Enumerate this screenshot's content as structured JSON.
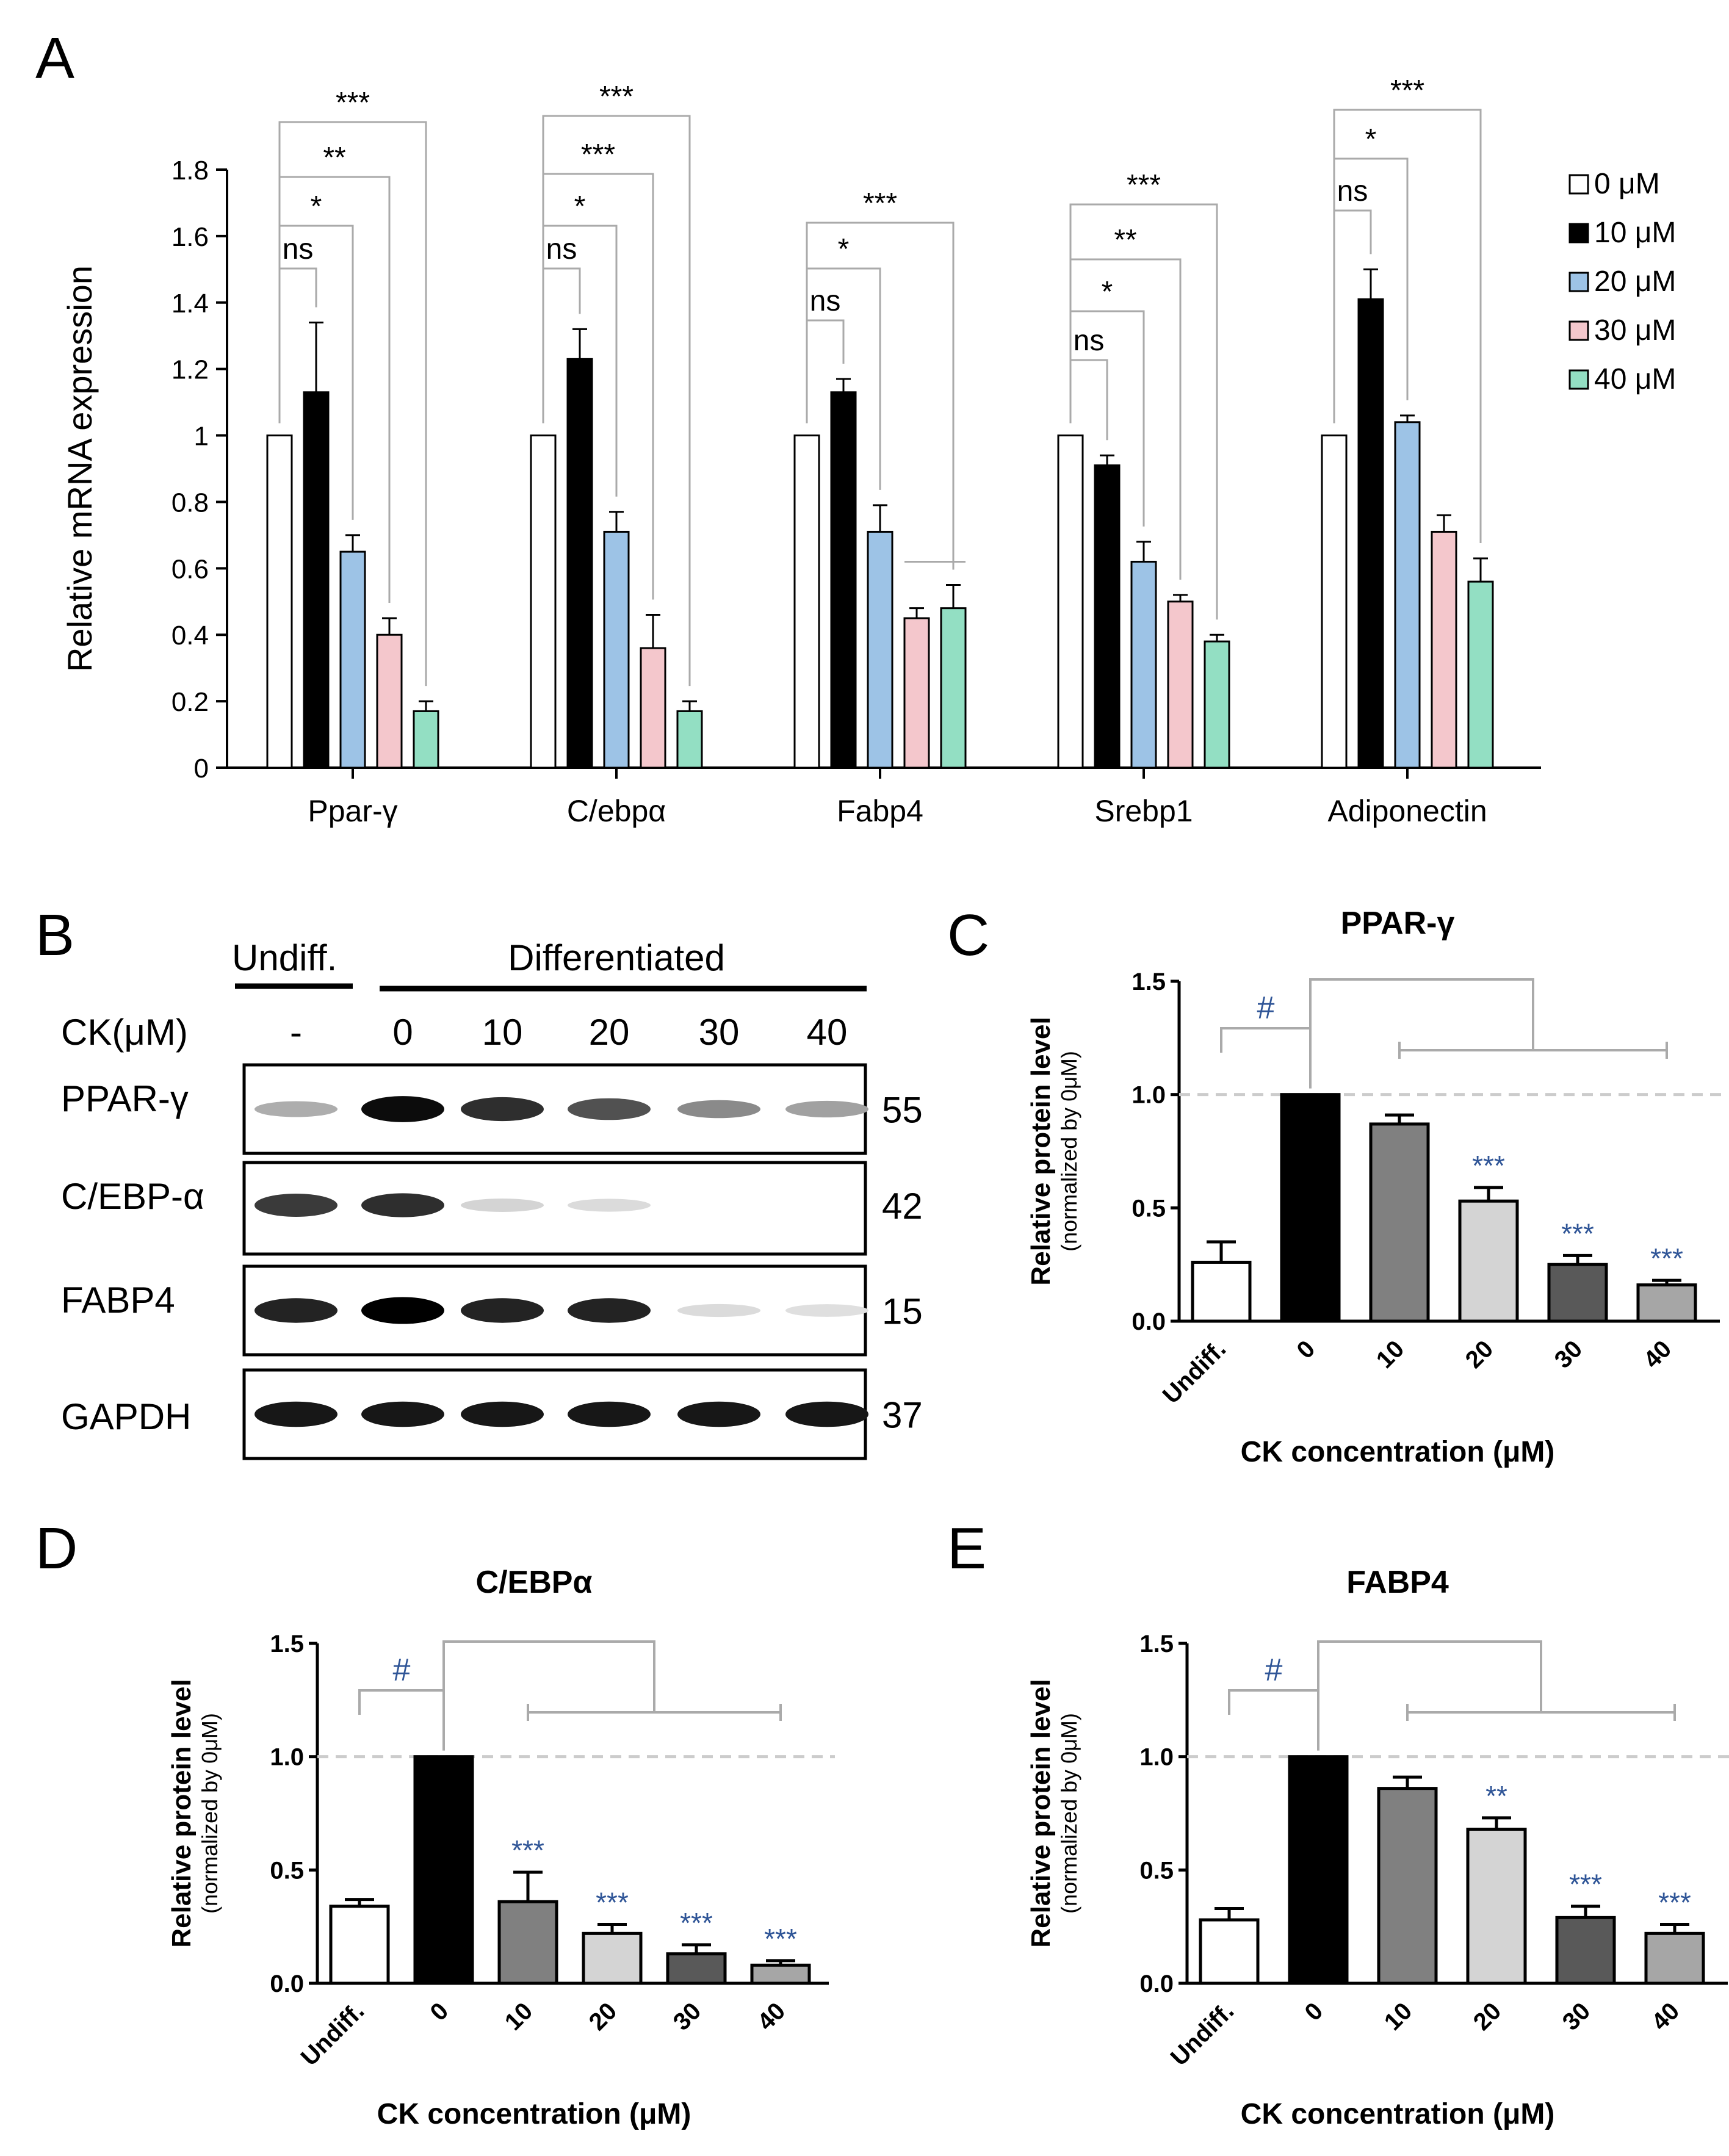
{
  "panels": {
    "A": "A",
    "B": "B",
    "C": "C",
    "D": "D",
    "E": "E"
  },
  "chart_data": [
    {
      "id": "A",
      "type": "bar",
      "title": "",
      "ylabel": "Relative  mRNA expression",
      "xlabel": "",
      "ylim": [
        0,
        1.8
      ],
      "yticks": [
        "0",
        "0.2",
        "0.4",
        "0.6",
        "0.8",
        "1",
        "1.2",
        "1.4",
        "1.6",
        "1.8"
      ],
      "categories": [
        "Ppar-γ",
        "C/ebpα",
        "Fabp4",
        "Srebp1",
        "Adiponectin"
      ],
      "legend": {
        "position": "top-right",
        "entries": [
          "0 μM",
          "10 μM",
          "20 μM",
          "30 μM",
          "40 μM"
        ]
      },
      "colors": [
        "#ffffff",
        "#000000",
        "#9dc3e6",
        "#f4c7cc",
        "#93dfc3"
      ],
      "series": [
        {
          "name": "0 μM",
          "values": [
            1,
            1,
            1,
            1,
            1
          ],
          "errors": [
            0,
            0,
            0,
            0,
            0
          ]
        },
        {
          "name": "10 μM",
          "values": [
            1.13,
            1.23,
            1.13,
            0.91,
            1.41
          ],
          "errors": [
            0.21,
            0.09,
            0.04,
            0.03,
            0.09
          ]
        },
        {
          "name": "20 μM",
          "values": [
            0.65,
            0.71,
            0.71,
            0.62,
            1.04
          ],
          "errors": [
            0.05,
            0.06,
            0.08,
            0.06,
            0.02
          ]
        },
        {
          "name": "30 μM",
          "values": [
            0.4,
            0.36,
            0.45,
            0.5,
            0.71
          ],
          "errors": [
            0.05,
            0.1,
            0.03,
            0.02,
            0.05
          ]
        },
        {
          "name": "40 μM",
          "values": [
            0.17,
            0.17,
            0.48,
            0.38,
            0.56
          ],
          "errors": [
            0.03,
            0.03,
            0.07,
            0.02,
            0.07
          ]
        }
      ],
      "significance": [
        [
          "ns",
          "*",
          "**",
          "***"
        ],
        [
          "ns",
          "*",
          "***",
          "***"
        ],
        [
          "ns",
          "*",
          "***"
        ],
        [
          "ns",
          "*",
          "**",
          "***"
        ],
        [
          "ns",
          "*",
          "***"
        ]
      ]
    },
    {
      "id": "C",
      "type": "bar",
      "title": "PPAR-γ",
      "ylabel": "Relative protein level",
      "ylabel2": "(normalized by 0μM)",
      "xlabel": "CK concentration (μM)",
      "ylim": [
        0,
        1.5
      ],
      "yticks": [
        "0.0",
        "0.5",
        "1.0",
        "1.5"
      ],
      "categories": [
        "Undiff.",
        "0",
        "10",
        "20",
        "30",
        "40"
      ],
      "values": [
        0.26,
        1.0,
        0.87,
        0.53,
        0.25,
        0.16
      ],
      "errors": [
        0.09,
        0,
        0.04,
        0.06,
        0.04,
        0.02
      ],
      "colors": [
        "#ffffff",
        "#000000",
        "#808080",
        "#d4d4d4",
        "#595959",
        "#a6a6a6"
      ],
      "sig": [
        "",
        "",
        "",
        "***",
        "***",
        "***"
      ],
      "hash": "#"
    },
    {
      "id": "D",
      "type": "bar",
      "title": "C/EBPα",
      "ylabel": "Relative protein level",
      "ylabel2": "(normalized by 0μM)",
      "xlabel": "CK concentration (μM)",
      "ylim": [
        0,
        1.5
      ],
      "yticks": [
        "0.0",
        "0.5",
        "1.0",
        "1.5"
      ],
      "categories": [
        "Undiff.",
        "0",
        "10",
        "20",
        "30",
        "40"
      ],
      "values": [
        0.34,
        1.0,
        0.36,
        0.22,
        0.13,
        0.08
      ],
      "errors": [
        0.03,
        0,
        0.13,
        0.04,
        0.04,
        0.02
      ],
      "colors": [
        "#ffffff",
        "#000000",
        "#808080",
        "#d4d4d4",
        "#595959",
        "#a6a6a6"
      ],
      "sig": [
        "",
        "",
        "***",
        "***",
        "***",
        "***"
      ],
      "hash": "#"
    },
    {
      "id": "E",
      "type": "bar",
      "title": "FABP4",
      "ylabel": "Relative protein level",
      "ylabel2": "(normalized by 0μM)",
      "xlabel": "CK concentration (μM)",
      "ylim": [
        0,
        1.5
      ],
      "yticks": [
        "0.0",
        "0.5",
        "1.0",
        "1.5"
      ],
      "categories": [
        "Undiff.",
        "0",
        "10",
        "20",
        "30",
        "40"
      ],
      "values": [
        0.28,
        1.0,
        0.86,
        0.68,
        0.29,
        0.22
      ],
      "errors": [
        0.05,
        0,
        0.05,
        0.05,
        0.05,
        0.04
      ],
      "colors": [
        "#ffffff",
        "#000000",
        "#808080",
        "#d4d4d4",
        "#595959",
        "#a6a6a6"
      ],
      "sig": [
        "",
        "",
        "",
        "**",
        "***",
        "***"
      ],
      "hash": "#"
    }
  ],
  "blot": {
    "undiff_label": "Undiff.",
    "diff_label": "Differentiated",
    "ck_label": "CK(μM)",
    "lanes": [
      "-",
      "0",
      "10",
      "20",
      "30",
      "40"
    ],
    "rows": [
      {
        "name": "PPAR-γ",
        "mw": "55",
        "intensity": [
          0.25,
          0.95,
          0.8,
          0.65,
          0.4,
          0.3
        ]
      },
      {
        "name": "C/EBP-α",
        "mw": "42",
        "intensity": [
          0.75,
          0.8,
          0.08,
          0.05,
          0,
          0
        ]
      },
      {
        "name": "FABP4",
        "mw": "15",
        "intensity": [
          0.85,
          1.0,
          0.85,
          0.85,
          0.05,
          0.03
        ]
      },
      {
        "name": "GAPDH",
        "mw": "37",
        "intensity": [
          0.9,
          0.9,
          0.9,
          0.9,
          0.9,
          0.9
        ]
      }
    ]
  }
}
